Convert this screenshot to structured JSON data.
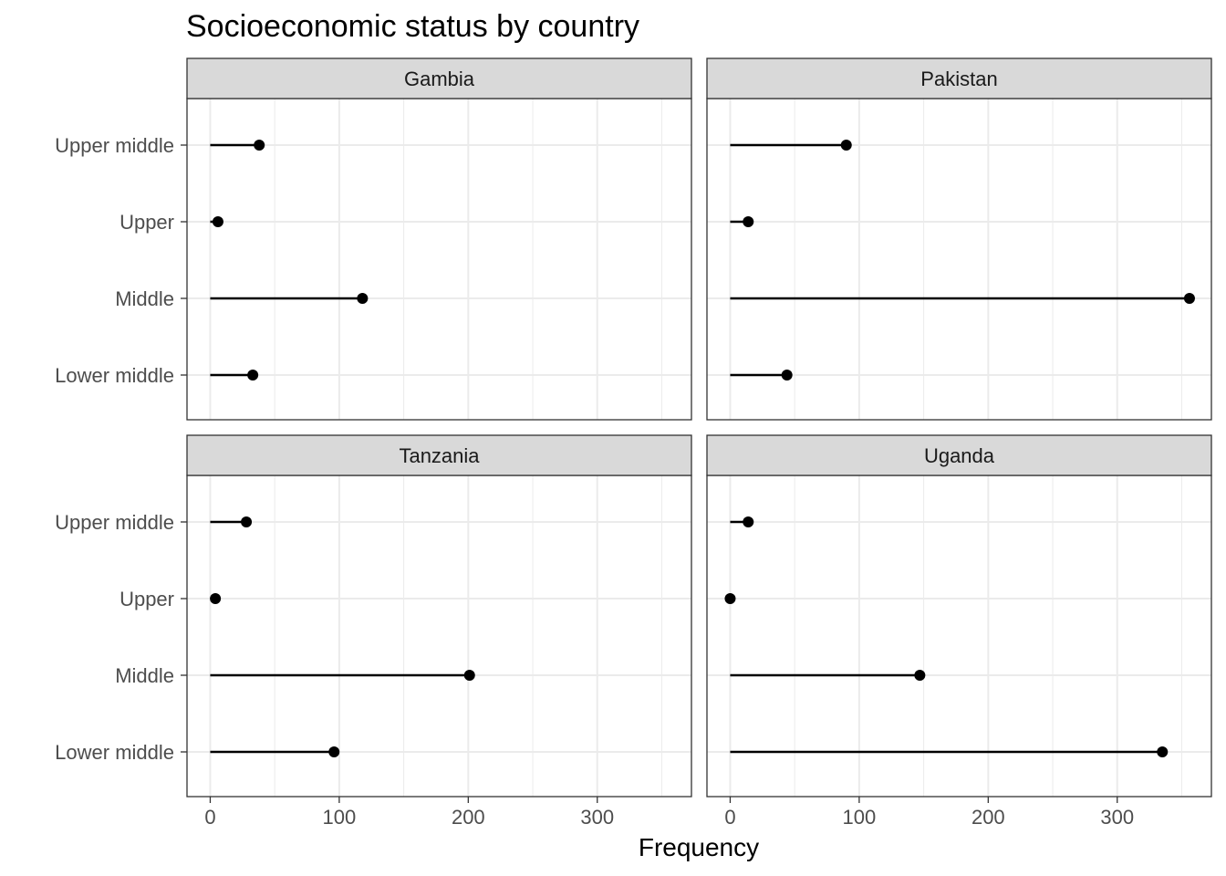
{
  "chart_data": {
    "type": "lollipop",
    "title": "Socioeconomic status by country",
    "xlabel": "Frequency",
    "ylabel": "",
    "xlim": [
      -18,
      373
    ],
    "x_ticks": [
      "0",
      "100",
      "200",
      "300"
    ],
    "categories": [
      "Upper middle",
      "Upper",
      "Middle",
      "Lower middle"
    ],
    "facets": [
      {
        "name": "Gambia",
        "values": [
          38,
          6,
          118,
          33
        ]
      },
      {
        "name": "Pakistan",
        "values": [
          90,
          14,
          356,
          44
        ]
      },
      {
        "name": "Tanzania",
        "values": [
          28,
          4,
          201,
          96
        ]
      },
      {
        "name": "Uganda",
        "values": [
          14,
          0,
          147,
          335
        ]
      }
    ],
    "grid": true,
    "colors": {
      "mark": "#000000",
      "strip_fill": "#d9d9d9",
      "grid": "#ebebeb",
      "panel_border": "#333333"
    }
  }
}
